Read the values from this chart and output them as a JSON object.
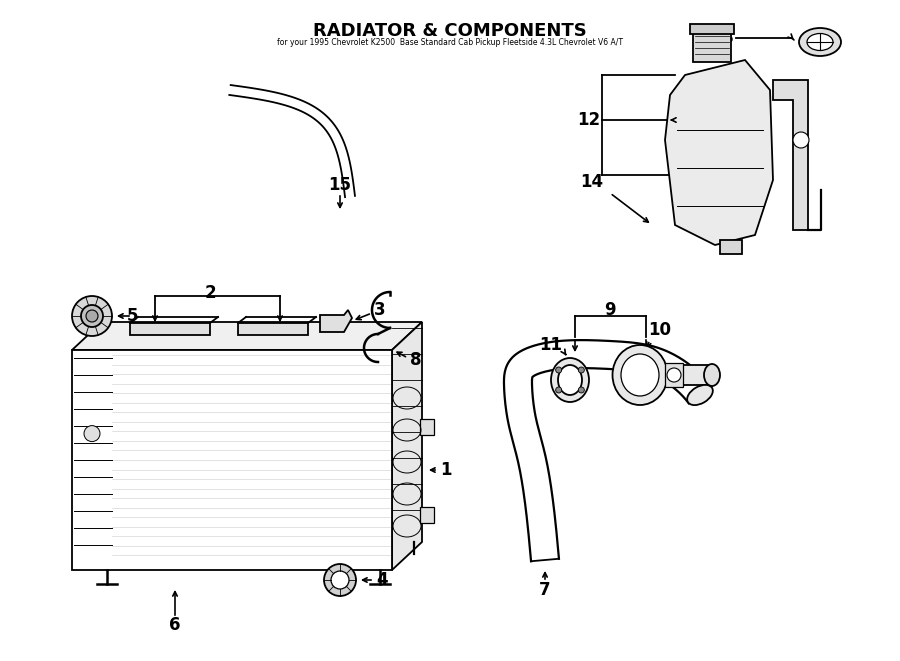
{
  "title": "RADIATOR & COMPONENTS",
  "subtitle": "for your 1995 Chevrolet K2500  Base Standard Cab Pickup Fleetside 4.3L Chevrolet V6 A/T",
  "bg_color": "#ffffff",
  "lc": "#000000",
  "fig_width": 9.0,
  "fig_height": 6.61,
  "dpi": 100
}
